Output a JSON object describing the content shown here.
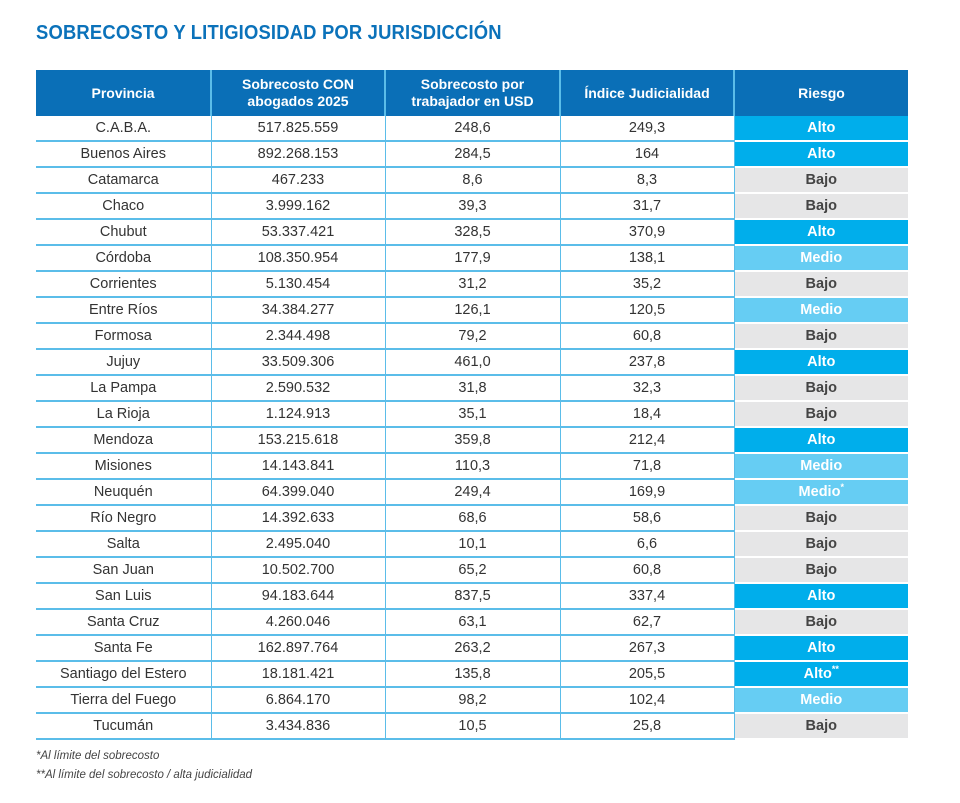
{
  "title": "SOBRECOSTO Y LITIGIOSIDAD POR JURISDICCIÓN",
  "colors": {
    "header": "#0a6fb7",
    "alto": "#00aeeb",
    "medio": "#66cdf3",
    "bajo": "#e6e6e7",
    "title": "#0b72ba"
  },
  "headers": [
    "Provincia",
    "Sobrecosto CON abogados 2025",
    "Sobrecosto por trabajador en USD",
    "Índice Judicialidad",
    "Riesgo"
  ],
  "rows": [
    {
      "provincia": "C.A.B.A.",
      "sobrecosto": "517.825.559",
      "por_trabajador": "248,6",
      "indice": "249,3",
      "riesgo": "Alto",
      "nota": ""
    },
    {
      "provincia": "Buenos Aires",
      "sobrecosto": "892.268.153",
      "por_trabajador": "284,5",
      "indice": "164",
      "riesgo": "Alto",
      "nota": ""
    },
    {
      "provincia": "Catamarca",
      "sobrecosto": "467.233",
      "por_trabajador": "8,6",
      "indice": "8,3",
      "riesgo": "Bajo",
      "nota": ""
    },
    {
      "provincia": "Chaco",
      "sobrecosto": "3.999.162",
      "por_trabajador": "39,3",
      "indice": "31,7",
      "riesgo": "Bajo",
      "nota": ""
    },
    {
      "provincia": "Chubut",
      "sobrecosto": "53.337.421",
      "por_trabajador": "328,5",
      "indice": "370,9",
      "riesgo": "Alto",
      "nota": ""
    },
    {
      "provincia": "Córdoba",
      "sobrecosto": "108.350.954",
      "por_trabajador": "177,9",
      "indice": "138,1",
      "riesgo": "Medio",
      "nota": ""
    },
    {
      "provincia": "Corrientes",
      "sobrecosto": "5.130.454",
      "por_trabajador": "31,2",
      "indice": "35,2",
      "riesgo": "Bajo",
      "nota": ""
    },
    {
      "provincia": "Entre Ríos",
      "sobrecosto": "34.384.277",
      "por_trabajador": "126,1",
      "indice": "120,5",
      "riesgo": "Medio",
      "nota": ""
    },
    {
      "provincia": "Formosa",
      "sobrecosto": "2.344.498",
      "por_trabajador": "79,2",
      "indice": "60,8",
      "riesgo": "Bajo",
      "nota": ""
    },
    {
      "provincia": "Jujuy",
      "sobrecosto": "33.509.306",
      "por_trabajador": "461,0",
      "indice": "237,8",
      "riesgo": "Alto",
      "nota": ""
    },
    {
      "provincia": "La Pampa",
      "sobrecosto": "2.590.532",
      "por_trabajador": "31,8",
      "indice": "32,3",
      "riesgo": "Bajo",
      "nota": ""
    },
    {
      "provincia": "La Rioja",
      "sobrecosto": "1.124.913",
      "por_trabajador": "35,1",
      "indice": "18,4",
      "riesgo": "Bajo",
      "nota": ""
    },
    {
      "provincia": "Mendoza",
      "sobrecosto": "153.215.618",
      "por_trabajador": "359,8",
      "indice": "212,4",
      "riesgo": "Alto",
      "nota": ""
    },
    {
      "provincia": "Misiones",
      "sobrecosto": "14.143.841",
      "por_trabajador": "110,3",
      "indice": "71,8",
      "riesgo": "Medio",
      "nota": ""
    },
    {
      "provincia": "Neuquén",
      "sobrecosto": "64.399.040",
      "por_trabajador": "249,4",
      "indice": "169,9",
      "riesgo": "Medio",
      "nota": "*"
    },
    {
      "provincia": "Río Negro",
      "sobrecosto": "14.392.633",
      "por_trabajador": "68,6",
      "indice": "58,6",
      "riesgo": "Bajo",
      "nota": ""
    },
    {
      "provincia": "Salta",
      "sobrecosto": "2.495.040",
      "por_trabajador": "10,1",
      "indice": "6,6",
      "riesgo": "Bajo",
      "nota": ""
    },
    {
      "provincia": "San Juan",
      "sobrecosto": "10.502.700",
      "por_trabajador": "65,2",
      "indice": "60,8",
      "riesgo": "Bajo",
      "nota": ""
    },
    {
      "provincia": "San Luis",
      "sobrecosto": "94.183.644",
      "por_trabajador": "837,5",
      "indice": "337,4",
      "riesgo": "Alto",
      "nota": ""
    },
    {
      "provincia": "Santa Cruz",
      "sobrecosto": "4.260.046",
      "por_trabajador": "63,1",
      "indice": "62,7",
      "riesgo": "Bajo",
      "nota": ""
    },
    {
      "provincia": "Santa Fe",
      "sobrecosto": "162.897.764",
      "por_trabajador": "263,2",
      "indice": "267,3",
      "riesgo": "Alto",
      "nota": ""
    },
    {
      "provincia": "Santiago del Estero",
      "sobrecosto": "18.181.421",
      "por_trabajador": "135,8",
      "indice": "205,5",
      "riesgo": "Alto",
      "nota": "**"
    },
    {
      "provincia": "Tierra del Fuego",
      "sobrecosto": "6.864.170",
      "por_trabajador": "98,2",
      "indice": "102,4",
      "riesgo": "Medio",
      "nota": ""
    },
    {
      "provincia": "Tucumán",
      "sobrecosto": "3.434.836",
      "por_trabajador": "10,5",
      "indice": "25,8",
      "riesgo": "Bajo",
      "nota": ""
    }
  ],
  "footnotes": [
    "*Al límite del sobrecosto",
    "**Al límite del sobrecosto / alta judicialidad"
  ]
}
